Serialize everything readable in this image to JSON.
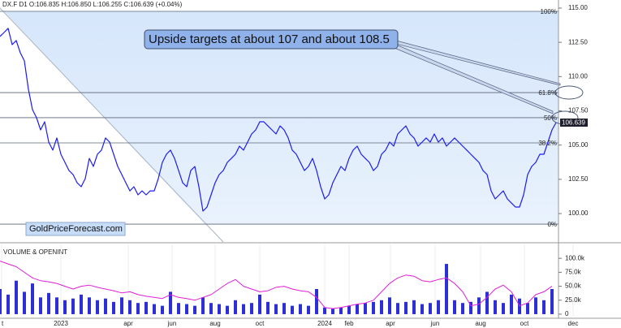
{
  "chart_data": [
    {
      "type": "line",
      "header": "DX.F D1 O:106.835 H:106.850 L:106.255 C:106.639 (+0.04%)",
      "annotation": "Upside targets at about 107 and about 108.5",
      "watermark": "GoldPriceForecast.com",
      "color": "#1c1cf0",
      "values": [
        112.93,
        113.22,
        113.52,
        112.33,
        112.63,
        111.74,
        111.15,
        109.07,
        107.59,
        107.0,
        106.11,
        106.7,
        105.22,
        104.63,
        105.52,
        104.33,
        103.74,
        103.14,
        102.85,
        102.25,
        101.96,
        102.55,
        104.03,
        103.44,
        104.33,
        104.63,
        105.52,
        105.22,
        104.33,
        103.44,
        102.85,
        102.25,
        101.66,
        101.96,
        101.37,
        101.66,
        101.37,
        101.66,
        101.66,
        102.55,
        103.74,
        104.33,
        104.63,
        104.03,
        103.14,
        102.25,
        101.96,
        103.14,
        103.44,
        101.96,
        100.18,
        100.48,
        101.37,
        102.25,
        102.85,
        103.14,
        103.74,
        104.03,
        104.33,
        104.92,
        104.63,
        105.22,
        105.81,
        106.11,
        106.7,
        106.7,
        106.4,
        106.11,
        105.81,
        106.4,
        106.11,
        105.52,
        104.63,
        104.33,
        103.74,
        103.14,
        103.44,
        104.03,
        103.14,
        101.96,
        101.07,
        101.37,
        102.25,
        102.85,
        103.44,
        103.14,
        104.03,
        104.63,
        104.92,
        104.33,
        104.03,
        103.74,
        103.14,
        103.44,
        104.33,
        104.63,
        105.22,
        104.92,
        105.81,
        106.11,
        106.4,
        105.81,
        105.52,
        104.92,
        105.22,
        105.52,
        105.22,
        105.81,
        105.22,
        105.52,
        104.92,
        105.22,
        105.52,
        105.22,
        104.92,
        104.63,
        104.33,
        104.03,
        103.74,
        103.14,
        102.85,
        101.66,
        101.07,
        101.37,
        101.66,
        101.07,
        100.77,
        100.48,
        100.48,
        101.37,
        102.85,
        103.44,
        103.74,
        104.33,
        104.33,
        105.22,
        106.11,
        106.64
      ],
      "xlim": [
        0,
        137.6
      ],
      "ylim": [
        97.93,
        115.59
      ],
      "yticks": [
        {
          "value": 100,
          "label": "100.00"
        },
        {
          "value": 102.5,
          "label": "102.50"
        },
        {
          "value": 105,
          "label": "105.00"
        },
        {
          "value": 107.5,
          "label": "107.50"
        },
        {
          "value": 110,
          "label": "110.00"
        },
        {
          "value": 112.5,
          "label": "112.50"
        },
        {
          "value": 115,
          "label": "115.00"
        }
      ],
      "fib_levels": [
        {
          "label": "100%",
          "value": 114.76
        },
        {
          "label": "61.8%",
          "value": 108.83
        },
        {
          "label": "50%",
          "value": 107.0
        },
        {
          "label": "38.2%",
          "value": 105.16
        },
        {
          "label": "0%",
          "value": 99.23
        }
      ],
      "last_price": 106.639
    },
    {
      "type": "bar",
      "title": "VOLUME & OPENINT",
      "series": [
        {
          "color": "#2e2ed6",
          "values": [
            45000,
            35000,
            60000,
            40000,
            55000,
            30000,
            38000,
            30000,
            25000,
            28000,
            35000,
            30000,
            25000,
            28000,
            22000,
            30000,
            25000,
            20000,
            22000,
            18000,
            15000,
            40000,
            20000,
            18000,
            15000,
            30000,
            20000,
            18000,
            15000,
            25000,
            18000,
            20000,
            35000,
            22000,
            18000,
            20000,
            15000,
            18000,
            15000,
            45000,
            12000,
            10000,
            12000,
            15000,
            18000,
            20000,
            22000,
            25000,
            30000,
            20000,
            22000,
            25000,
            18000,
            20000,
            25000,
            90000,
            25000,
            20000,
            22000,
            30000,
            40000,
            25000,
            20000,
            35000,
            28000,
            20000,
            30000,
            25000,
            45000
          ]
        },
        {
          "type": "line",
          "color": "#e020d8",
          "values": [
            95000,
            90000,
            85000,
            75000,
            65000,
            60000,
            58000,
            55000,
            50000,
            45000,
            50000,
            52000,
            48000,
            45000,
            42000,
            38000,
            40000,
            35000,
            32000,
            30000,
            28000,
            35000,
            30000,
            28000,
            25000,
            30000,
            35000,
            45000,
            55000,
            62000,
            50000,
            45000,
            40000,
            42000,
            48000,
            50000,
            45000,
            42000,
            40000,
            30000,
            12000,
            10000,
            12000,
            15000,
            18000,
            20000,
            25000,
            40000,
            55000,
            65000,
            70000,
            68000,
            60000,
            58000,
            62000,
            65000,
            55000,
            40000,
            15000,
            18000,
            30000,
            45000,
            52000,
            40000,
            15000,
            20000,
            35000,
            40000,
            50000
          ]
        }
      ],
      "xlim": [
        0,
        68.8
      ],
      "ylim": [
        -7350,
        125000
      ],
      "yticks": [
        0,
        {
          "value": 25000,
          "label": "25.0k"
        },
        {
          "value": 50000,
          "label": "50.0k"
        },
        {
          "value": 75000,
          "label": "75.0k"
        },
        {
          "value": 100000,
          "label": "100.0k"
        }
      ],
      "xticks": [
        {
          "value": 0.2,
          "label": "t"
        },
        {
          "value": 7.5,
          "label": "2023"
        },
        {
          "value": 15.8,
          "label": "apr"
        },
        {
          "value": 21.2,
          "label": "jun"
        },
        {
          "value": 26.5,
          "label": "aug"
        },
        {
          "value": 32,
          "label": "oct"
        },
        {
          "value": 40,
          "label": "2024"
        },
        {
          "value": 43,
          "label": "feb"
        },
        {
          "value": 48.1,
          "label": "apr"
        },
        {
          "value": 53.6,
          "label": "jun"
        },
        {
          "value": 59.2,
          "label": "aug"
        },
        {
          "value": 64.6,
          "label": "oct"
        },
        {
          "value": 70.6,
          "label": "dec"
        }
      ]
    }
  ]
}
